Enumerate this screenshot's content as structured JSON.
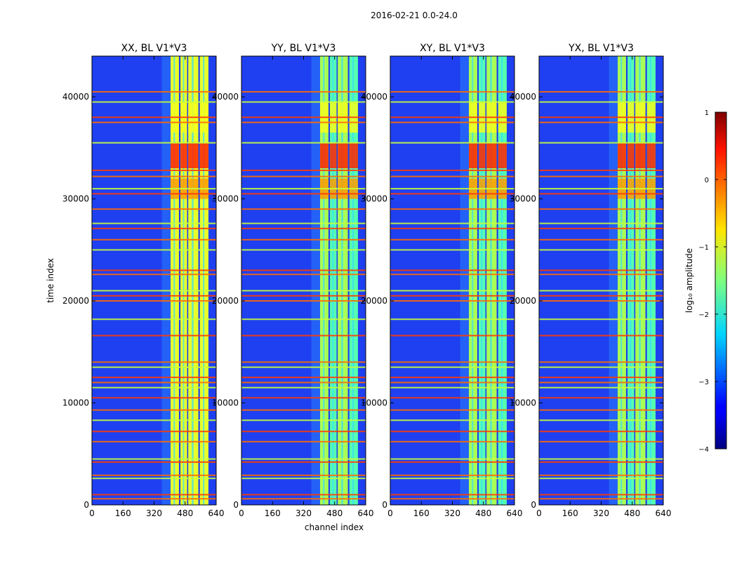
{
  "figure": {
    "suptitle": "2016-02-21 0.0-24.0"
  },
  "chart_data": {
    "type": "heatmap",
    "title": "2016-02-21 0.0-24.0",
    "xlabel": "channel index",
    "ylabel": "time index",
    "xlim": [
      0,
      640
    ],
    "ylim": [
      0,
      44000
    ],
    "x_ticks": [
      0,
      160,
      320,
      480,
      640
    ],
    "y_ticks": [
      0,
      10000,
      20000,
      30000,
      40000
    ],
    "panels": [
      {
        "title": "XX, BL V1*V3"
      },
      {
        "title": "YY, BL V1*V3"
      },
      {
        "title": "XY, BL V1*V3"
      },
      {
        "title": "YX, BL V1*V3"
      }
    ],
    "band_channels": [
      {
        "start": 405,
        "end": 448
      },
      {
        "start": 456,
        "end": 490
      },
      {
        "start": 496,
        "end": 548
      },
      {
        "start": 556,
        "end": 600
      }
    ],
    "bright_bursts": [
      {
        "t_start": 33000,
        "t_end": 35500,
        "log_amp": 0.3
      },
      {
        "t_start": 30000,
        "t_end": 32000,
        "log_amp": -0.2
      },
      {
        "t_start": 36500,
        "t_end": 39500,
        "log_amp": -0.6
      }
    ],
    "flagged_rows": [
      600,
      1000,
      2600,
      2900,
      4200,
      4500,
      6200,
      7200,
      8300,
      9300,
      10500,
      11500,
      12000,
      12500,
      13500,
      14000,
      16600,
      18200,
      20000,
      20500,
      21000,
      22600,
      23000,
      25000,
      26000,
      27100,
      27600,
      29000,
      30500,
      31000,
      32200,
      32800,
      35500,
      37500,
      38000,
      39500,
      40500
    ],
    "colorbar": {
      "label": "log₁₀ amplitude",
      "vmin": -4,
      "vmax": 1,
      "ticks": [
        1,
        0,
        -1,
        -2,
        -3,
        -4
      ],
      "tick_labels": [
        "1",
        "0",
        "−1",
        "−2",
        "−3",
        "−4"
      ],
      "colormap": "jet"
    }
  }
}
